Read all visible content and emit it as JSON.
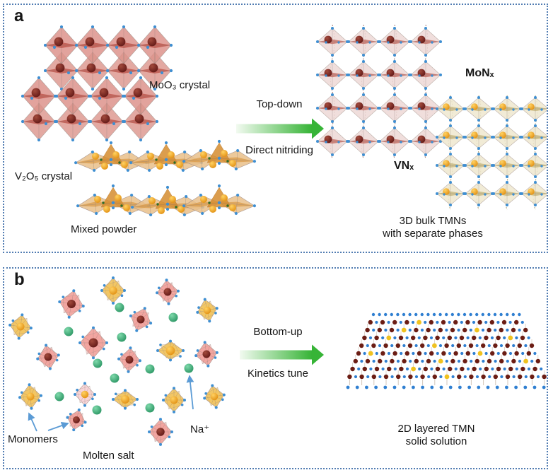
{
  "figure": {
    "panel_a": {
      "letter": "a",
      "labels": {
        "moo3_crystal": "MoO₃ crystal",
        "v2o5_crystal": "V₂O₅ crystal",
        "mixed_powder": "Mixed powder",
        "process_top": "Top-down",
        "process_bottom": "Direct nitriding",
        "monx": "MoNₓ",
        "vnx": "VNₓ",
        "result_line1": "3D bulk TMNs",
        "result_line2": "with separate phases"
      }
    },
    "panel_b": {
      "letter": "b",
      "labels": {
        "process_top": "Bottom-up",
        "process_bottom": "Kinetics tune",
        "monomers": "Monomers",
        "molten_salt": "Molten salt",
        "na_ion": "Na⁺",
        "result_line1": "2D layered TMN",
        "result_line2": "solid solution"
      }
    }
  },
  "colors": {
    "panel_border": "#517cb2",
    "text": "#161616",
    "arrow_green": "#37b437",
    "arrow_green_light": "#f2faf0",
    "annotation_arrow_blue": "#5b9bd5",
    "mo_octahedron_fill": "#dd948c",
    "mo_octahedron_band": "#b03a2e",
    "mo_sphere_dark_red": "#571010",
    "monx_octahedron_fill": "#eed9d6",
    "v2o5_octahedron_fill": "#e9c08a",
    "v2o5_band": "#d58c2f",
    "vnx_octahedron_fill": "#efe8d0",
    "vnx_band": "#b3a058",
    "v_sphere_orange": "#f09c12",
    "oxygen_dot_blue": "#3f8fd2",
    "na_sphere_green": "#2fae76",
    "monomer_pink": "#f2a19c",
    "monomer_pale_pink": "#f8d3d6",
    "monomer_yellow": "#f2c45c",
    "slab_nitrogen_dot": "#2f7fd1",
    "slab_mo_dot": "#6b1d14",
    "slab_v_dot": "#f0c21f"
  }
}
